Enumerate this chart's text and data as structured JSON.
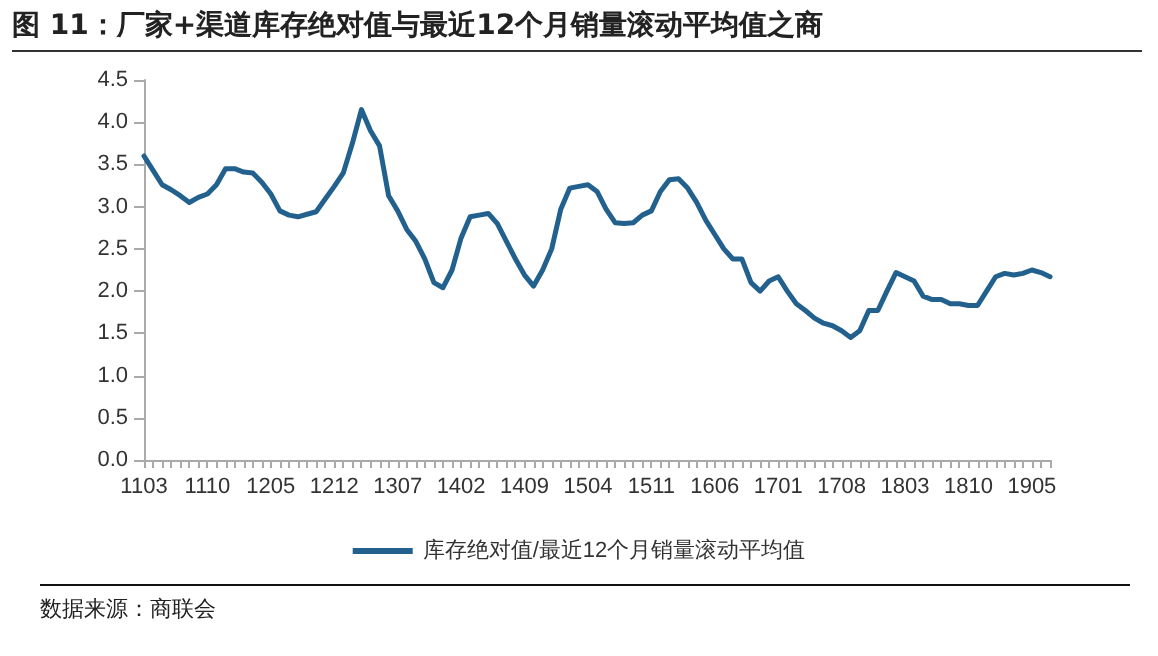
{
  "chart_data": {
    "type": "line",
    "title": "图 11：厂家+渠道库存绝对值与最近12个月销量滚动平均值之商",
    "categories": [
      "1103",
      null,
      null,
      null,
      null,
      null,
      null,
      "1110",
      null,
      null,
      null,
      null,
      null,
      null,
      "1205",
      null,
      null,
      null,
      null,
      null,
      null,
      "1212",
      null,
      null,
      null,
      null,
      null,
      null,
      "1307",
      null,
      null,
      null,
      null,
      null,
      null,
      "1402",
      null,
      null,
      null,
      null,
      null,
      null,
      "1409",
      null,
      null,
      null,
      null,
      null,
      null,
      "1504",
      null,
      null,
      null,
      null,
      null,
      null,
      "1511",
      null,
      null,
      null,
      null,
      null,
      null,
      "1606",
      null,
      null,
      null,
      null,
      null,
      null,
      "1701",
      null,
      null,
      null,
      null,
      null,
      null,
      "1708",
      null,
      null,
      null,
      null,
      null,
      null,
      "1803",
      null,
      null,
      null,
      null,
      null,
      null,
      "1810",
      null,
      null,
      null,
      null,
      null,
      null,
      "1905",
      null,
      null
    ],
    "series": [
      {
        "name": "库存绝对值/最近12个月销量滚动平均值",
        "color": "#22618e",
        "values": [
          3.6,
          3.43,
          3.26,
          3.2,
          3.13,
          3.05,
          3.11,
          3.15,
          3.26,
          3.45,
          3.45,
          3.41,
          3.4,
          3.29,
          3.15,
          2.95,
          2.9,
          2.88,
          2.91,
          2.94,
          3.09,
          3.24,
          3.4,
          3.75,
          4.15,
          3.9,
          3.72,
          3.13,
          2.95,
          2.73,
          2.59,
          2.38,
          2.1,
          2.04,
          2.25,
          2.63,
          2.88,
          2.9,
          2.92,
          2.8,
          2.59,
          2.38,
          2.19,
          2.06,
          2.25,
          2.5,
          2.97,
          3.22,
          3.24,
          3.26,
          3.18,
          2.97,
          2.81,
          2.8,
          2.81,
          2.9,
          2.95,
          3.18,
          3.32,
          3.33,
          3.22,
          3.05,
          2.84,
          2.67,
          2.5,
          2.38,
          2.38,
          2.1,
          2.0,
          2.12,
          2.17,
          2.0,
          1.85,
          1.77,
          1.68,
          1.62,
          1.59,
          1.53,
          1.45,
          1.53,
          1.77,
          1.77,
          2.0,
          2.22,
          2.17,
          2.12,
          1.94,
          1.9,
          1.9,
          1.85,
          1.85,
          1.83,
          1.83,
          2.0,
          2.17,
          2.21,
          2.19,
          2.21,
          2.25,
          2.22,
          2.17
        ]
      }
    ],
    "ylim": [
      0,
      4.5
    ],
    "yticks": [
      {
        "value": 0,
        "label": "0.0"
      },
      0.5,
      {
        "value": 1,
        "label": "1.0"
      },
      1.5,
      {
        "value": 2,
        "label": "2.0"
      },
      2.5,
      {
        "value": 3,
        "label": "3.0"
      },
      3.5,
      {
        "value": 4,
        "label": "4.0"
      },
      4.5
    ],
    "grid": false,
    "legend": "bottom",
    "marker": "none",
    "line_style": "solid",
    "annotations": [
      "数据来源：商联会"
    ]
  }
}
